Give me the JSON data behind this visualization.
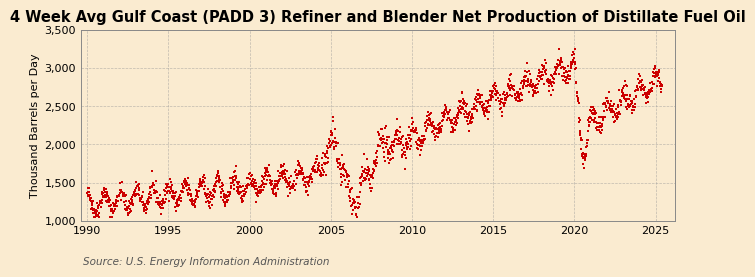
{
  "title": "4 Week Avg Gulf Coast (PADD 3) Refiner and Blender Net Production of Distillate Fuel Oil",
  "ylabel": "Thousand Barrels per Day",
  "source": "Source: U.S. Energy Information Administration",
  "line_color": "#cc0000",
  "background_color": "#faebd0",
  "plot_bg_color": "#faebd0",
  "grid_color": "#999999",
  "ylim": [
    1000,
    3500
  ],
  "yticks": [
    1000,
    1500,
    2000,
    2500,
    3000,
    3500
  ],
  "ytick_labels": [
    "1,000",
    "1,500",
    "2,000",
    "2,500",
    "3,000",
    "3,500"
  ],
  "xlim_start": 1989.6,
  "xlim_end": 2026.2,
  "xticks": [
    1990,
    1995,
    2000,
    2005,
    2010,
    2015,
    2020,
    2025
  ],
  "title_fontsize": 10.5,
  "ylabel_fontsize": 8.0,
  "tick_fontsize": 8,
  "source_fontsize": 7.5,
  "marker": "s",
  "markersize": 1.5,
  "linewidth": 0.0
}
